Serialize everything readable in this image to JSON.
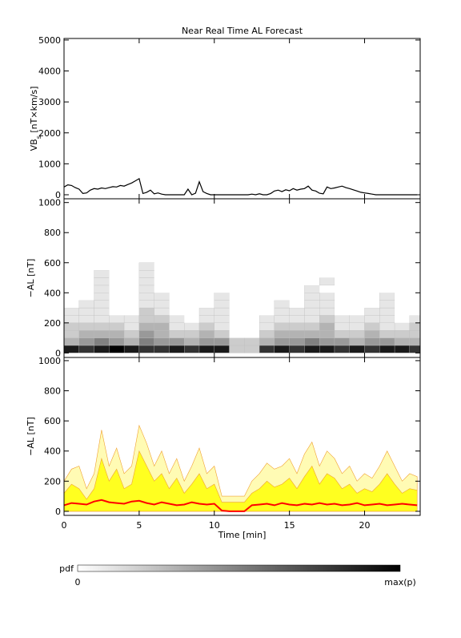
{
  "chart_data": [
    {
      "type": "line",
      "title": "Near Real Time AL Forecast",
      "ylabel_parts": [
        "VB",
        "s",
        " [nT×km/s]"
      ],
      "xlim": [
        0,
        23.7
      ],
      "xticks": [
        0,
        5,
        10,
        15,
        20
      ],
      "show_xtick_labels": false,
      "ylim": [
        -130,
        5050
      ],
      "yticks": [
        0,
        1000,
        2000,
        3000,
        4000,
        5000
      ],
      "color": "#000000",
      "x": [
        0,
        0.25,
        0.5,
        0.75,
        1,
        1.25,
        1.5,
        1.75,
        2,
        2.25,
        2.5,
        2.75,
        3,
        3.25,
        3.5,
        3.75,
        4,
        4.25,
        4.5,
        4.75,
        5,
        5.25,
        5.5,
        5.75,
        6,
        6.25,
        6.5,
        6.75,
        7,
        7.25,
        7.5,
        7.75,
        8,
        8.25,
        8.5,
        8.75,
        9,
        9.25,
        9.5,
        9.75,
        10,
        10.25,
        10.5,
        10.75,
        11,
        11.25,
        11.5,
        11.75,
        12,
        12.25,
        12.5,
        12.75,
        13,
        13.25,
        13.5,
        13.75,
        14,
        14.25,
        14.5,
        14.75,
        15,
        15.25,
        15.5,
        15.75,
        16,
        16.25,
        16.5,
        16.75,
        17,
        17.25,
        17.5,
        17.75,
        18,
        18.25,
        18.5,
        18.75,
        19,
        19.25,
        19.5,
        19.75,
        20,
        20.25,
        20.5,
        20.75,
        21,
        21.25,
        21.5,
        21.75,
        22,
        22.25,
        22.5,
        22.75,
        23,
        23.25,
        23.5
      ],
      "values": [
        250,
        320,
        300,
        230,
        180,
        40,
        60,
        150,
        200,
        180,
        220,
        200,
        230,
        260,
        250,
        300,
        280,
        330,
        380,
        450,
        520,
        40,
        80,
        150,
        30,
        60,
        20,
        0,
        0,
        0,
        0,
        0,
        0,
        180,
        0,
        50,
        420,
        100,
        40,
        0,
        0,
        0,
        0,
        0,
        0,
        0,
        0,
        0,
        0,
        0,
        20,
        0,
        30,
        0,
        0,
        40,
        120,
        150,
        100,
        160,
        130,
        200,
        150,
        180,
        200,
        280,
        150,
        120,
        50,
        30,
        250,
        200,
        220,
        250,
        280,
        230,
        200,
        160,
        120,
        80,
        60,
        40,
        20,
        0,
        0,
        0,
        0,
        0,
        0,
        0,
        0,
        0,
        0,
        0,
        0
      ]
    },
    {
      "type": "heatmap",
      "ylabel_parts": [
        "−AL [nT]"
      ],
      "xlim": [
        0,
        23.7
      ],
      "xticks": [
        0,
        5,
        10,
        15,
        20
      ],
      "show_xtick_labels": false,
      "ylim": [
        -30,
        1025
      ],
      "yticks": [
        0,
        200,
        400,
        600,
        800,
        1000
      ],
      "x_edges": [
        0,
        1,
        2,
        3,
        4,
        5,
        6,
        7,
        8,
        9,
        10,
        11,
        12,
        13,
        14,
        15,
        16,
        17,
        18,
        19,
        20,
        21,
        22,
        23,
        23.7
      ],
      "y_edges": [
        0,
        50,
        100,
        150,
        200,
        250,
        300,
        350,
        400,
        450,
        500,
        550,
        600
      ],
      "zlim": [
        0,
        1
      ],
      "z": [
        [
          0.9,
          0.8,
          0.9,
          1,
          0.9,
          0.8,
          0.8,
          0.9,
          0.8,
          0.9,
          0.9,
          0.2,
          0.2,
          0.8,
          0.9,
          0.8,
          0.9,
          0.9,
          0.8,
          0.9,
          0.8,
          0.9,
          0.9,
          0.8
        ],
        [
          0.3,
          0.4,
          0.5,
          0.4,
          0.3,
          0.5,
          0.4,
          0.4,
          0.3,
          0.4,
          0.4,
          0.2,
          0.2,
          0.3,
          0.4,
          0.4,
          0.5,
          0.4,
          0.4,
          0.3,
          0.4,
          0.4,
          0.3,
          0.3
        ],
        [
          0.2,
          0.3,
          0.3,
          0.3,
          0.2,
          0.4,
          0.3,
          0.2,
          0.2,
          0.3,
          0.2,
          0,
          0,
          0.2,
          0.3,
          0.3,
          0.3,
          0.3,
          0.2,
          0.2,
          0.3,
          0.2,
          0.2,
          0.2
        ],
        [
          0.2,
          0.2,
          0.2,
          0.2,
          0.1,
          0.3,
          0.3,
          0.1,
          0.1,
          0.2,
          0.1,
          0,
          0,
          0.1,
          0.2,
          0.2,
          0.2,
          0.3,
          0.1,
          0.1,
          0.2,
          0.1,
          0.1,
          0.2
        ],
        [
          0.1,
          0.1,
          0.1,
          0.1,
          0.1,
          0.2,
          0.2,
          0.1,
          0,
          0.1,
          0.1,
          0,
          0,
          0.1,
          0.1,
          0.1,
          0.1,
          0.2,
          0.1,
          0.1,
          0.1,
          0.1,
          0,
          0.1
        ],
        [
          0.1,
          0.1,
          0.1,
          0,
          0,
          0.2,
          0.1,
          0,
          0,
          0.1,
          0.1,
          0,
          0,
          0,
          0.1,
          0.1,
          0.1,
          0.1,
          0,
          0,
          0.1,
          0.1,
          0,
          0
        ],
        [
          0,
          0.1,
          0.1,
          0,
          0,
          0.1,
          0.1,
          0,
          0,
          0,
          0.1,
          0,
          0,
          0,
          0.1,
          0,
          0.1,
          0.1,
          0,
          0,
          0,
          0.1,
          0,
          0
        ],
        [
          0,
          0,
          0.1,
          0,
          0,
          0.1,
          0.1,
          0,
          0,
          0,
          0.1,
          0,
          0,
          0,
          0,
          0,
          0.1,
          0.1,
          0,
          0,
          0,
          0.1,
          0,
          0
        ],
        [
          0,
          0,
          0.1,
          0,
          0,
          0.1,
          0,
          0,
          0,
          0,
          0,
          0,
          0,
          0,
          0,
          0,
          0.1,
          0,
          0,
          0,
          0,
          0,
          0,
          0
        ],
        [
          0,
          0,
          0.1,
          0,
          0,
          0.1,
          0,
          0,
          0,
          0,
          0,
          0,
          0,
          0,
          0,
          0,
          0,
          0.1,
          0,
          0,
          0,
          0,
          0,
          0
        ],
        [
          0,
          0,
          0.1,
          0,
          0,
          0.1,
          0,
          0,
          0,
          0,
          0,
          0,
          0,
          0,
          0,
          0,
          0,
          0,
          0,
          0,
          0,
          0,
          0,
          0
        ],
        [
          0,
          0,
          0,
          0,
          0,
          0.1,
          0,
          0,
          0,
          0,
          0,
          0,
          0,
          0,
          0,
          0,
          0,
          0,
          0,
          0,
          0,
          0,
          0,
          0
        ]
      ]
    },
    {
      "type": "band",
      "ylabel_parts": [
        "−AL [nT]"
      ],
      "xlabel": "Time [min]",
      "xlim": [
        0,
        23.7
      ],
      "xticks": [
        0,
        5,
        10,
        15,
        20
      ],
      "show_xtick_labels": true,
      "ylim": [
        -27,
        1021
      ],
      "yticks": [
        0,
        200,
        400,
        600,
        800,
        1000
      ],
      "x": [
        0,
        0.5,
        1,
        1.5,
        2,
        2.5,
        3,
        3.5,
        4,
        4.5,
        5,
        5.5,
        6,
        6.5,
        7,
        7.5,
        8,
        8.5,
        9,
        9.5,
        10,
        10.5,
        11,
        11.5,
        12,
        12.5,
        13,
        13.5,
        14,
        14.5,
        15,
        15.5,
        16,
        16.5,
        17,
        17.5,
        18,
        18.5,
        19,
        19.5,
        20,
        20.5,
        21,
        21.5,
        22,
        22.5,
        23,
        23.5
      ],
      "series": [
        {
          "kind": "area",
          "color": "#fffbb4",
          "values": [
            200,
            280,
            300,
            150,
            250,
            540,
            300,
            420,
            250,
            300,
            570,
            450,
            300,
            400,
            250,
            350,
            200,
            300,
            420,
            250,
            300,
            100,
            100,
            100,
            100,
            200,
            250,
            320,
            280,
            300,
            350,
            250,
            380,
            460,
            300,
            400,
            350,
            250,
            300,
            200,
            250,
            220,
            300,
            400,
            300,
            200,
            250,
            230
          ]
        },
        {
          "kind": "area",
          "color": "#ffff20",
          "values": [
            120,
            180,
            150,
            80,
            150,
            350,
            200,
            280,
            150,
            180,
            400,
            300,
            200,
            250,
            150,
            220,
            120,
            180,
            250,
            150,
            180,
            60,
            60,
            60,
            60,
            120,
            150,
            200,
            160,
            180,
            220,
            150,
            230,
            300,
            180,
            250,
            220,
            150,
            180,
            120,
            150,
            130,
            180,
            250,
            180,
            120,
            150,
            140
          ]
        },
        {
          "kind": "line",
          "color": "#ff0000",
          "values": [
            40,
            55,
            50,
            45,
            65,
            75,
            60,
            55,
            50,
            65,
            70,
            55,
            45,
            60,
            50,
            40,
            45,
            60,
            50,
            45,
            50,
            5,
            0,
            0,
            0,
            40,
            45,
            50,
            40,
            55,
            45,
            40,
            50,
            45,
            55,
            45,
            50,
            40,
            45,
            55,
            40,
            45,
            50,
            40,
            45,
            50,
            45,
            40
          ]
        }
      ]
    }
  ],
  "colorbar": {
    "label": "pdf",
    "min_label": "0",
    "max_label": "max(p)",
    "colors": [
      "#ffffff",
      "#000000"
    ]
  }
}
